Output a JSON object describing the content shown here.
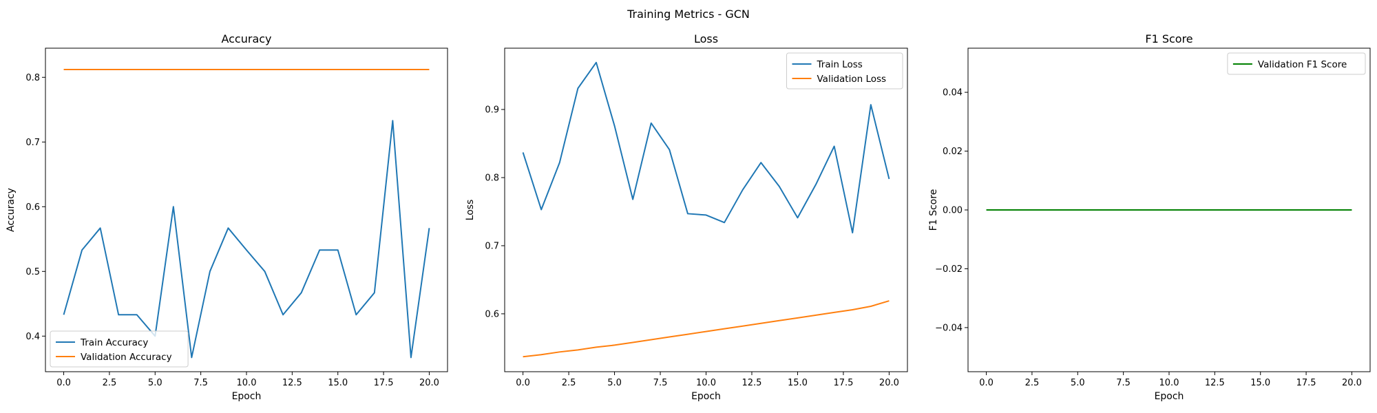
{
  "figure": {
    "suptitle": "Training Metrics - GCN"
  },
  "colors": {
    "blue": "#1f77b4",
    "orange": "#ff7f0e",
    "green": "#008000"
  },
  "chart_data": [
    {
      "type": "line",
      "title": "Accuracy",
      "xlabel": "Epoch",
      "ylabel": "Accuracy",
      "xlim": [
        -1.0,
        21.0
      ],
      "ylim": [
        0.345,
        0.845
      ],
      "xticks": [
        0.0,
        2.5,
        5.0,
        7.5,
        10.0,
        12.5,
        15.0,
        17.5,
        20.0
      ],
      "xtick_labels": [
        "0.0",
        "2.5",
        "5.0",
        "7.5",
        "10.0",
        "12.5",
        "15.0",
        "17.5",
        "20.0"
      ],
      "yticks": [
        0.4,
        0.5,
        0.6,
        0.7,
        0.8
      ],
      "ytick_labels": [
        "0.4",
        "0.5",
        "0.6",
        "0.7",
        "0.8"
      ],
      "grid": false,
      "legend_position": "lower-left",
      "x": [
        0,
        1,
        2,
        3,
        4,
        5,
        6,
        7,
        8,
        9,
        10,
        11,
        12,
        13,
        14,
        15,
        16,
        17,
        18,
        19,
        20
      ],
      "series": [
        {
          "name": "Train Accuracy",
          "color": "#1f77b4",
          "values": [
            0.433,
            0.533,
            0.567,
            0.433,
            0.433,
            0.4,
            0.6,
            0.367,
            0.5,
            0.567,
            0.533,
            0.5,
            0.433,
            0.467,
            0.533,
            0.533,
            0.433,
            0.467,
            0.733,
            0.367,
            0.567
          ]
        },
        {
          "name": "Validation Accuracy",
          "color": "#ff7f0e",
          "values": [
            0.812,
            0.812,
            0.812,
            0.812,
            0.812,
            0.812,
            0.812,
            0.812,
            0.812,
            0.812,
            0.812,
            0.812,
            0.812,
            0.812,
            0.812,
            0.812,
            0.812,
            0.812,
            0.812,
            0.812,
            0.812
          ]
        }
      ]
    },
    {
      "type": "line",
      "title": "Loss",
      "xlabel": "Epoch",
      "ylabel": "Loss",
      "xlim": [
        -1.0,
        21.0
      ],
      "ylim": [
        0.515,
        0.99
      ],
      "xticks": [
        0.0,
        2.5,
        5.0,
        7.5,
        10.0,
        12.5,
        15.0,
        17.5,
        20.0
      ],
      "xtick_labels": [
        "0.0",
        "2.5",
        "5.0",
        "7.5",
        "10.0",
        "12.5",
        "15.0",
        "17.5",
        "20.0"
      ],
      "yticks": [
        0.6,
        0.7,
        0.8,
        0.9
      ],
      "ytick_labels": [
        "0.6",
        "0.7",
        "0.8",
        "0.9"
      ],
      "grid": false,
      "legend_position": "upper-right",
      "x": [
        0,
        1,
        2,
        3,
        4,
        5,
        6,
        7,
        8,
        9,
        10,
        11,
        12,
        13,
        14,
        15,
        16,
        17,
        18,
        19,
        20
      ],
      "series": [
        {
          "name": "Train Loss",
          "color": "#1f77b4",
          "values": [
            0.837,
            0.753,
            0.822,
            0.931,
            0.969,
            0.876,
            0.768,
            0.88,
            0.841,
            0.747,
            0.745,
            0.734,
            0.782,
            0.822,
            0.787,
            0.741,
            0.79,
            0.846,
            0.719,
            0.907,
            0.798
          ]
        },
        {
          "name": "Validation Loss",
          "color": "#ff7f0e",
          "values": [
            0.537,
            0.54,
            0.544,
            0.547,
            0.551,
            0.554,
            0.558,
            0.562,
            0.566,
            0.57,
            0.574,
            0.578,
            0.582,
            0.586,
            0.59,
            0.594,
            0.598,
            0.602,
            0.606,
            0.611,
            0.619
          ]
        }
      ]
    },
    {
      "type": "line",
      "title": "F1 Score",
      "xlabel": "Epoch",
      "ylabel": "F1 Score",
      "xlim": [
        -1.0,
        21.0
      ],
      "ylim": [
        -0.055,
        0.055
      ],
      "xticks": [
        0.0,
        2.5,
        5.0,
        7.5,
        10.0,
        12.5,
        15.0,
        17.5,
        20.0
      ],
      "xtick_labels": [
        "0.0",
        "2.5",
        "5.0",
        "7.5",
        "10.0",
        "12.5",
        "15.0",
        "17.5",
        "20.0"
      ],
      "yticks": [
        -0.04,
        -0.02,
        0.0,
        0.02,
        0.04
      ],
      "ytick_labels": [
        "−0.04",
        "−0.02",
        "0.00",
        "0.02",
        "0.04"
      ],
      "grid": false,
      "legend_position": "upper-right",
      "x": [
        0,
        1,
        2,
        3,
        4,
        5,
        6,
        7,
        8,
        9,
        10,
        11,
        12,
        13,
        14,
        15,
        16,
        17,
        18,
        19,
        20
      ],
      "series": [
        {
          "name": "Validation F1 Score",
          "color": "#008000",
          "values": [
            0,
            0,
            0,
            0,
            0,
            0,
            0,
            0,
            0,
            0,
            0,
            0,
            0,
            0,
            0,
            0,
            0,
            0,
            0,
            0,
            0
          ]
        }
      ]
    }
  ]
}
